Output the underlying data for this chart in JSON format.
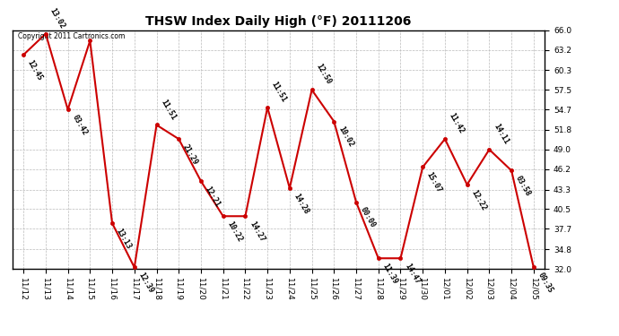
{
  "title": "THSW Index Daily High (°F) 20111206",
  "copyright": "Copyright 2011 Cartronics.com",
  "x_labels": [
    "11/12",
    "11/13",
    "11/14",
    "11/15",
    "11/16",
    "11/17",
    "11/18",
    "11/19",
    "11/20",
    "11/21",
    "11/22",
    "11/23",
    "11/24",
    "11/25",
    "11/26",
    "11/27",
    "11/28",
    "11/29",
    "11/30",
    "12/01",
    "12/02",
    "12/03",
    "12/04",
    "12/05"
  ],
  "y_values": [
    62.5,
    65.5,
    54.7,
    64.5,
    38.5,
    32.2,
    52.5,
    50.5,
    44.5,
    39.5,
    39.5,
    55.0,
    43.5,
    57.5,
    53.0,
    41.5,
    33.5,
    33.5,
    46.5,
    50.5,
    44.0,
    49.0,
    46.0,
    32.2
  ],
  "time_labels": [
    "12:45",
    "13:02",
    "03:42",
    "",
    "13:13",
    "12:39",
    "11:51",
    "21:29",
    "12:21",
    "10:22",
    "14:27",
    "11:51",
    "14:28",
    "12:50",
    "10:02",
    "00:00",
    "11:39",
    "14:47",
    "15:07",
    "11:42",
    "12:22",
    "14:11",
    "03:58",
    "09:35"
  ],
  "yticks": [
    32.0,
    34.8,
    37.7,
    40.5,
    43.3,
    46.2,
    49.0,
    51.8,
    54.7,
    57.5,
    60.3,
    63.2,
    66.0
  ],
  "ylim": [
    32.0,
    66.0
  ],
  "line_color": "#cc0000",
  "marker_color": "#cc0000",
  "background_color": "#ffffff",
  "grid_color": "#bbbbbb",
  "title_fontsize": 10,
  "annotation_fontsize": 6,
  "tick_label_fontsize": 6.5
}
